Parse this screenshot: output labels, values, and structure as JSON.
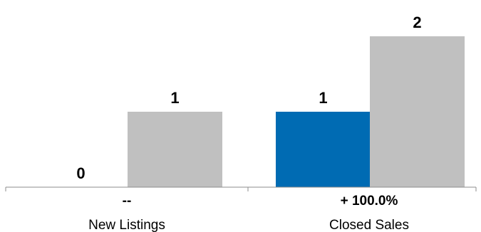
{
  "chart_data": {
    "type": "bar",
    "categories": [
      "New Listings",
      "Closed Sales"
    ],
    "series": [
      {
        "values": [
          0,
          1
        ],
        "color": "#006BB3"
      },
      {
        "values": [
          1,
          2
        ],
        "color": "#C0C0C0"
      }
    ],
    "value_labels": [
      [
        "0",
        "1"
      ],
      [
        "1",
        "2"
      ]
    ],
    "change_labels": [
      "--",
      "+ 100.0%"
    ],
    "ylim": [
      0,
      2
    ],
    "grid": false,
    "legend": "none"
  }
}
